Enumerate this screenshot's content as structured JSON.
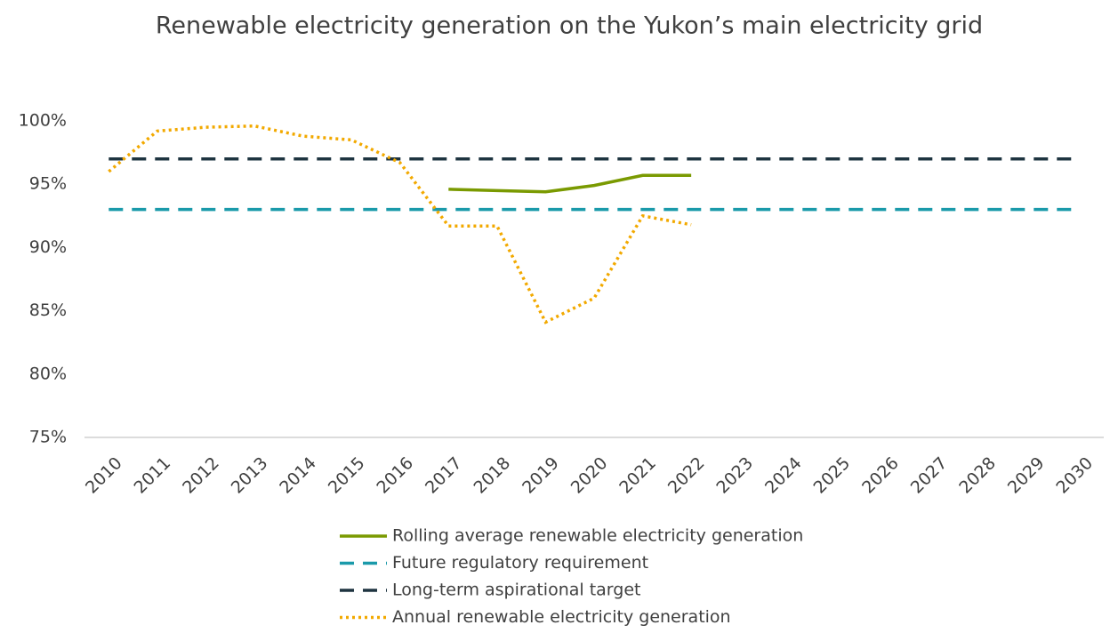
{
  "chart_data": {
    "type": "line",
    "title": "Renewable electricity generation on the Yukon’s main electricity grid",
    "categories": [
      "2010",
      "2011",
      "2012",
      "2013",
      "2014",
      "2015",
      "2016",
      "2017",
      "2018",
      "2019",
      "2020",
      "2021",
      "2022",
      "2023",
      "2024",
      "2025",
      "2026",
      "2027",
      "2028",
      "2029",
      "2030"
    ],
    "series": [
      {
        "name": "Rolling average renewable electricity generation",
        "color": "#7a9a01",
        "style": "solid",
        "values": [
          null,
          null,
          null,
          null,
          null,
          null,
          null,
          94.6,
          94.5,
          94.4,
          94.9,
          95.7,
          95.7,
          null,
          null,
          null,
          null,
          null,
          null,
          null,
          null
        ]
      },
      {
        "name": "Future regulatory requirement",
        "color": "#1a9aaa",
        "style": "dashed",
        "values": [
          93,
          93,
          93,
          93,
          93,
          93,
          93,
          93,
          93,
          93,
          93,
          93,
          93,
          93,
          93,
          93,
          93,
          93,
          93,
          93,
          93
        ]
      },
      {
        "name": "Long-term aspirational target",
        "color": "#1e3440",
        "style": "dashed",
        "values": [
          97,
          97,
          97,
          97,
          97,
          97,
          97,
          97,
          97,
          97,
          97,
          97,
          97,
          97,
          97,
          97,
          97,
          97,
          97,
          97,
          97
        ]
      },
      {
        "name": "Annual renewable electricity generation",
        "color": "#f2a900",
        "style": "dotted",
        "values": [
          96.0,
          99.2,
          99.5,
          99.6,
          98.8,
          98.5,
          96.7,
          91.7,
          91.7,
          84.1,
          86.0,
          92.5,
          91.8,
          null,
          null,
          null,
          null,
          null,
          null,
          null,
          null
        ]
      }
    ],
    "ylim": [
      75,
      100
    ],
    "yticks": [
      {
        "value": 75,
        "label": "75%"
      },
      {
        "value": 80,
        "label": "80%"
      },
      {
        "value": 85,
        "label": "85%"
      },
      {
        "value": 90,
        "label": "90%"
      },
      {
        "value": 95,
        "label": "95%"
      },
      {
        "value": 100,
        "label": "100%"
      }
    ],
    "legend": "bottom"
  }
}
